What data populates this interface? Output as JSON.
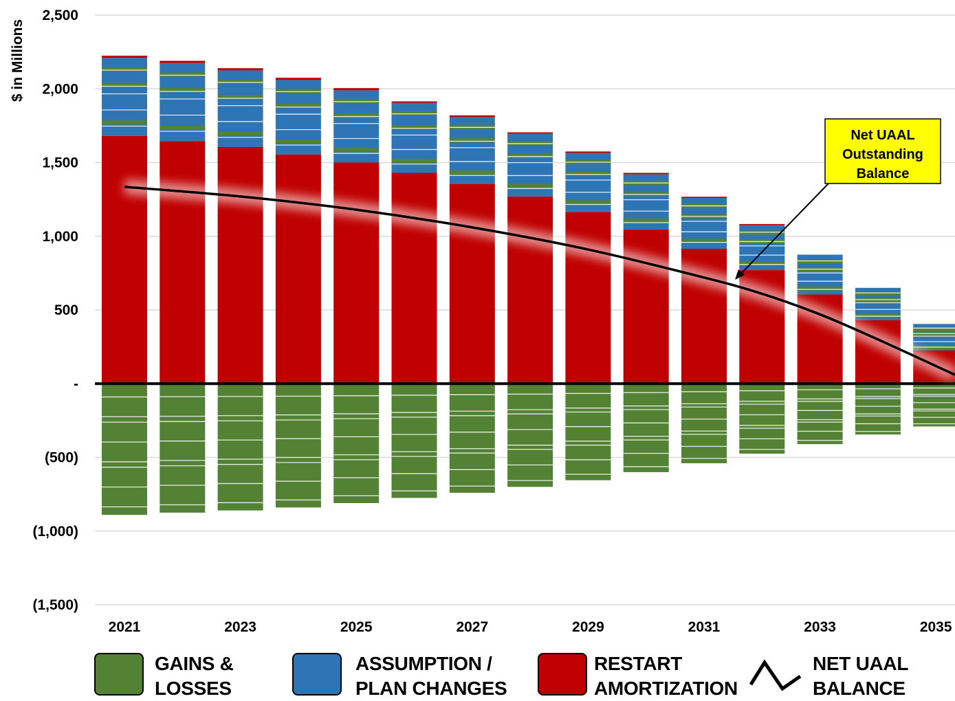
{
  "chart_data": {
    "type": "bar",
    "stacked": true,
    "ylabel": "$ in Millions",
    "ylim": [
      -1500,
      2500
    ],
    "yticks": [
      {
        "value": 2500,
        "label": "2,500"
      },
      {
        "value": 2000,
        "label": "2,000"
      },
      {
        "value": 1500,
        "label": "1,500"
      },
      {
        "value": 1000,
        "label": "1,000"
      },
      {
        "value": 500,
        "label": "500"
      },
      {
        "value": 0,
        "label": "-"
      },
      {
        "value": -500,
        "label": "(500)"
      },
      {
        "value": -1000,
        "label": "(1,000)"
      },
      {
        "value": -1500,
        "label": "(1,500)"
      }
    ],
    "grid": true,
    "categories": [
      "2021",
      "2022",
      "2023",
      "2024",
      "2025",
      "2026",
      "2027",
      "2028",
      "2029",
      "2030",
      "2031",
      "2032",
      "2033",
      "2034",
      "2035"
    ],
    "xtick_labels": [
      "2021",
      "2023",
      "2025",
      "2027",
      "2029",
      "2031",
      "2033",
      "2035"
    ],
    "series": [
      {
        "name": "RESTART AMORTIZATION",
        "color": "#c00000",
        "values": [
          1680,
          1645,
          1605,
          1555,
          1500,
          1430,
          1355,
          1270,
          1165,
          1045,
          915,
          770,
          605,
          430,
          225
        ]
      },
      {
        "name": "ASSUMPTION / PLAN CHANGES",
        "color": "#2e75b6",
        "values": [
          530,
          530,
          520,
          505,
          490,
          475,
          455,
          425,
          400,
          375,
          345,
          305,
          270,
          220,
          180
        ]
      },
      {
        "name": "RESTART AMORTIZATION",
        "color": "#c00000",
        "note_hidden": true,
        "values": [
          15,
          15,
          15,
          15,
          15,
          10,
          10,
          10,
          10,
          10,
          8,
          8,
          0,
          0,
          0
        ]
      },
      {
        "name": "GAINS & LOSSES",
        "color": "#548235",
        "values": [
          -890,
          -875,
          -860,
          -840,
          -810,
          -775,
          -740,
          -700,
          -655,
          -600,
          -540,
          -475,
          -410,
          -345,
          -290
        ]
      }
    ],
    "line": {
      "name": "NET UAAL BALANCE",
      "color": "#000000",
      "x": [
        2021,
        2023,
        2025,
        2027,
        2029,
        2031,
        2032,
        2033,
        2034,
        2035
      ],
      "values": [
        1335,
        1270,
        1180,
        1060,
        910,
        720,
        610,
        470,
        300,
        60
      ]
    },
    "callout": {
      "lines": [
        "Net UAAL",
        "Outstanding",
        "Balance"
      ],
      "color": "#ffff00"
    },
    "legend": [
      {
        "label": "GAINS &\nLOSSES",
        "color": "#548235",
        "kind": "swatch"
      },
      {
        "label": "ASSUMPTION /\nPLAN CHANGES",
        "color": "#2e75b6",
        "kind": "swatch"
      },
      {
        "label": "RESTART\nAMORTIZATION",
        "color": "#c00000",
        "kind": "swatch"
      },
      {
        "label": "NET UAAL\nBALANCE",
        "color": "#000000",
        "kind": "line"
      }
    ]
  }
}
